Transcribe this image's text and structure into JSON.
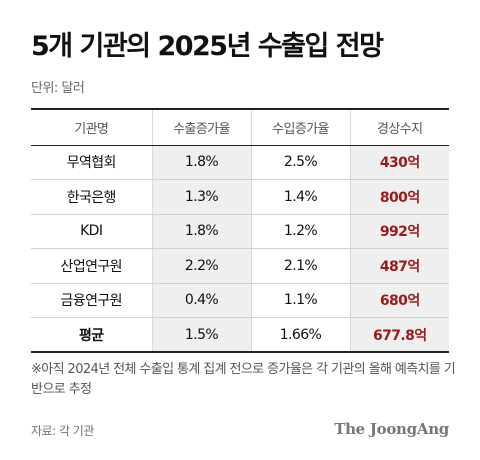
{
  "title": "5개 기관의 2025년 수출입 전망",
  "unit": "단위: 달러",
  "table": {
    "headers": [
      "기관명",
      "수출증가율",
      "수입증가율",
      "경상수지"
    ],
    "rows": [
      {
        "name": "무역협회",
        "export": "1.8%",
        "import": "2.5%",
        "balance": "430억"
      },
      {
        "name": "한국은행",
        "export": "1.3%",
        "import": "1.4%",
        "balance": "800억"
      },
      {
        "name": "KDI",
        "export": "1.8%",
        "import": "1.2%",
        "balance": "992억"
      },
      {
        "name": "산업연구원",
        "export": "2.2%",
        "import": "2.1%",
        "balance": "487억"
      },
      {
        "name": "금융연구원",
        "export": "0.4%",
        "import": "1.1%",
        "balance": "680억"
      }
    ],
    "average": {
      "name": "평균",
      "export": "1.5%",
      "import": "1.66%",
      "balance": "677.8억"
    }
  },
  "footnote": "※아직 2024년 전체 수출입 통계 집계 전으로 증가율은 각 기관의 올해 예측치를 기반으로 추정",
  "source": "자료: 각 기관",
  "logo": "The JoongAng",
  "colors": {
    "balance": "#9b1a1a",
    "shade": "#efefef"
  }
}
